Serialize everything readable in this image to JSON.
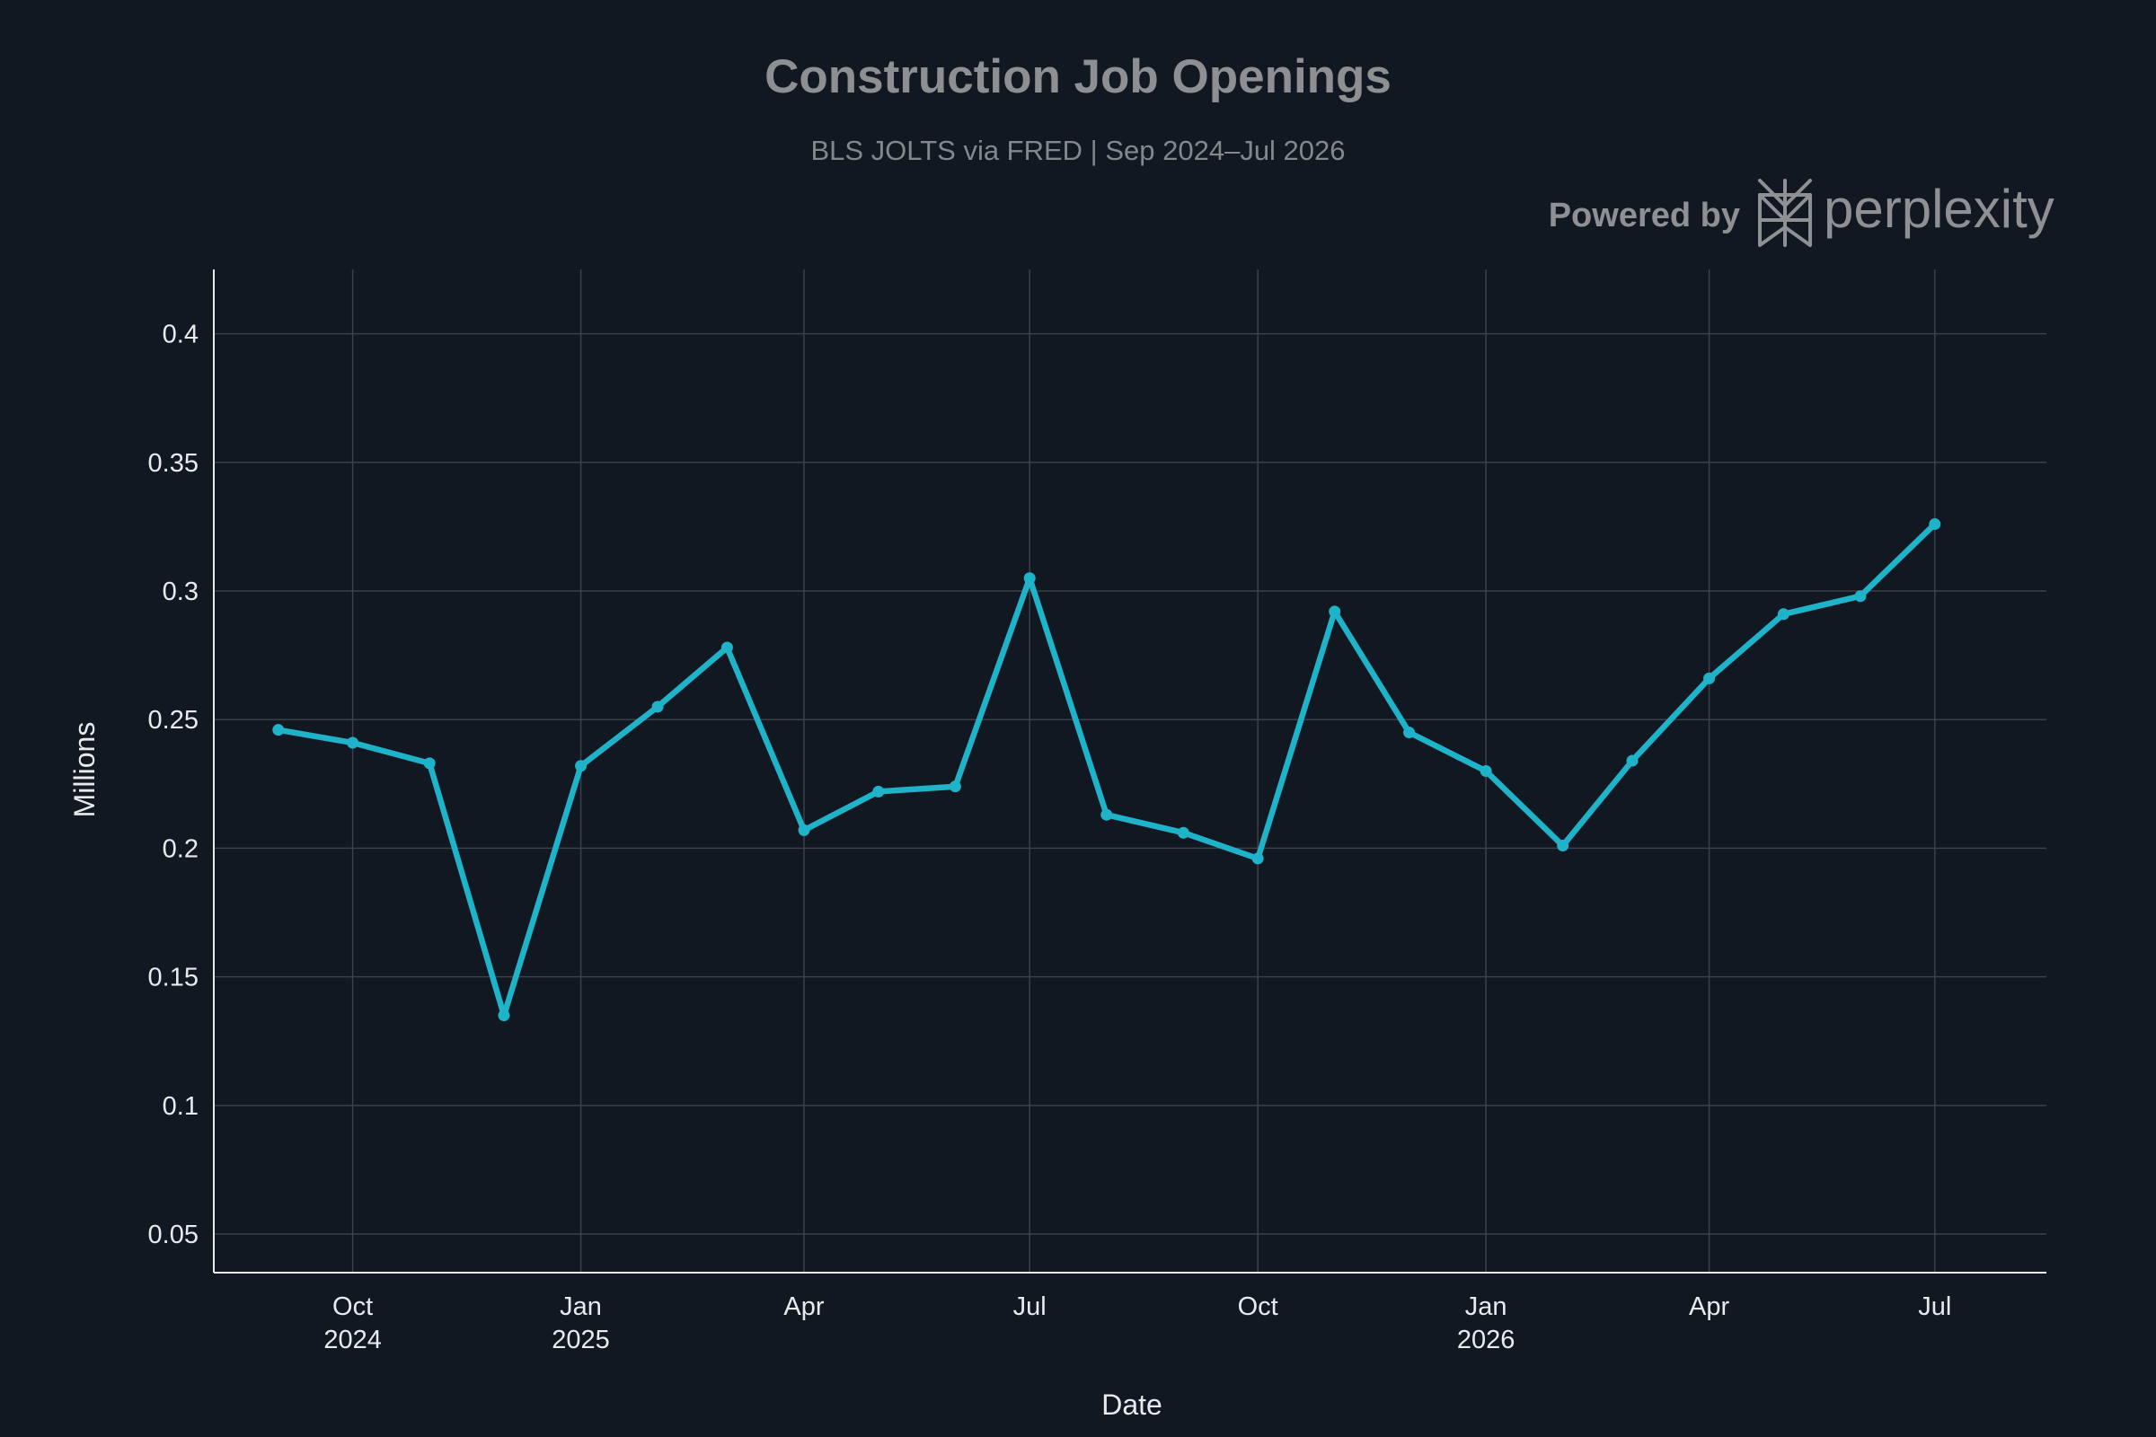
{
  "chart_data": {
    "type": "line",
    "title": "Construction Job Openings",
    "subtitle": "BLS JOLTS via FRED | Sep 2024–Jul 2026",
    "xlabel": "Date",
    "ylabel": "Millions",
    "ylim": [
      0.035,
      0.425
    ],
    "xlim": [
      "2024-08-06",
      "2026-08-15"
    ],
    "y_ticks": [
      {
        "value": 0.05,
        "label": "0.05"
      },
      {
        "value": 0.1,
        "label": "0.1"
      },
      {
        "value": 0.15,
        "label": "0.15"
      },
      {
        "value": 0.2,
        "label": "0.2"
      },
      {
        "value": 0.25,
        "label": "0.25"
      },
      {
        "value": 0.3,
        "label": "0.3"
      },
      {
        "value": 0.35,
        "label": "0.35"
      },
      {
        "value": 0.4,
        "label": "0.4"
      }
    ],
    "x_ticks": [
      {
        "date": "2024-10-01",
        "label": "Oct",
        "year": "2024"
      },
      {
        "date": "2025-01-01",
        "label": "Jan",
        "year": "2025"
      },
      {
        "date": "2025-04-01",
        "label": "Apr",
        "year": ""
      },
      {
        "date": "2025-07-01",
        "label": "Jul",
        "year": ""
      },
      {
        "date": "2025-10-01",
        "label": "Oct",
        "year": ""
      },
      {
        "date": "2026-01-01",
        "label": "Jan",
        "year": "2026"
      },
      {
        "date": "2026-04-01",
        "label": "Apr",
        "year": ""
      },
      {
        "date": "2026-07-01",
        "label": "Jul",
        "year": ""
      }
    ],
    "grid": true,
    "series": [
      {
        "color": "#1fb3c9",
        "points": [
          {
            "x": "2024-09-01",
            "y": 0.246
          },
          {
            "x": "2024-10-01",
            "y": 0.241
          },
          {
            "x": "2024-11-01",
            "y": 0.233
          },
          {
            "x": "2024-12-01",
            "y": 0.135
          },
          {
            "x": "2025-01-01",
            "y": 0.232
          },
          {
            "x": "2025-02-01",
            "y": 0.255
          },
          {
            "x": "2025-03-01",
            "y": 0.278
          },
          {
            "x": "2025-04-01",
            "y": 0.207
          },
          {
            "x": "2025-05-01",
            "y": 0.222
          },
          {
            "x": "2025-06-01",
            "y": 0.224
          },
          {
            "x": "2025-07-01",
            "y": 0.305
          },
          {
            "x": "2025-08-01",
            "y": 0.213
          },
          {
            "x": "2025-09-01",
            "y": 0.206
          },
          {
            "x": "2025-10-01",
            "y": 0.196
          },
          {
            "x": "2025-11-01",
            "y": 0.292
          },
          {
            "x": "2025-12-01",
            "y": 0.245
          },
          {
            "x": "2026-01-01",
            "y": 0.23
          },
          {
            "x": "2026-02-01",
            "y": 0.201
          },
          {
            "x": "2026-03-01",
            "y": 0.234
          },
          {
            "x": "2026-04-01",
            "y": 0.266
          },
          {
            "x": "2026-05-01",
            "y": 0.291
          },
          {
            "x": "2026-06-01",
            "y": 0.298
          },
          {
            "x": "2026-07-01",
            "y": 0.326
          }
        ]
      }
    ]
  },
  "branding": {
    "powered_label": "Powered by",
    "brand_name": "perplexity",
    "logo_icon": "perplexity-logo-icon"
  }
}
